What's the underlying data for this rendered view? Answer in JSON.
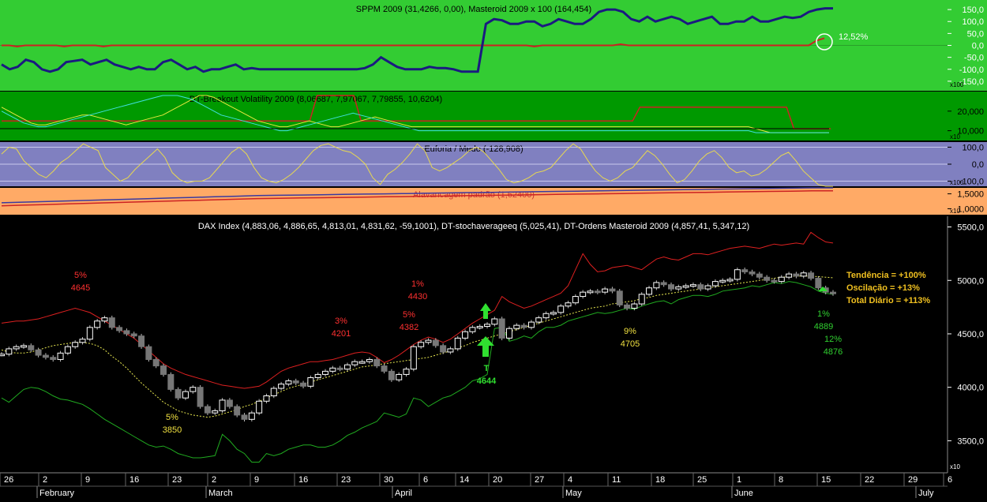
{
  "panels": {
    "sppm": {
      "title": "SPPM 2009 (31,4266, 0,00), Masteroid 2009 x 100 (164,454)",
      "ticks": [
        "150,0",
        "100,0",
        "50,0",
        "0,0",
        "-50,0",
        "-100,0",
        "-150,0"
      ],
      "scale": "x100",
      "annotation": "12,52%"
    },
    "breakout": {
      "title": "DT-Breakout Volatility 2009 (8,06687, 7,97067, 7,79855, 10,6204)",
      "ticks": [
        "20,000",
        "10,000"
      ],
      "scale": "x10"
    },
    "euforia": {
      "title": "Euforia / Medo (-128,908)",
      "ticks": [
        "100,0",
        "0,0",
        "-100,0"
      ],
      "scale": "x100"
    },
    "alavancagem": {
      "title": "Alavancagem padrão (1,62400)",
      "ticks": [
        "1,5000",
        "1,0000"
      ],
      "scale": "x10"
    },
    "dax": {
      "title": "DAX Index (4,883,06, 4,886,65, 4,813,01, 4,831,62, -59,1001), DT-stochaverageeq (5,025,41), DT-Ordens Masteroid 2009 (4,857,41, 5,347,12)",
      "ticks": [
        "5500,0",
        "5000,0",
        "4500,0",
        "4000,0",
        "3500,0"
      ],
      "scale": "x10",
      "legend": {
        "tendencia": "Tendência = +100%",
        "oscilacao": "Oscilação = +13%",
        "total": "Total Diário = +113%"
      },
      "signal_letter": "T",
      "signal_value": "4644",
      "annotations": [
        {
          "pct": "5%",
          "value": "4645",
          "color": "#ff3030"
        },
        {
          "pct": "5%",
          "value": "3850",
          "color": "#f0e040"
        },
        {
          "pct": "3%",
          "value": "4201",
          "color": "#ff3030"
        },
        {
          "pct": "5%",
          "value": "4382",
          "color": "#ff3030"
        },
        {
          "pct": "1%",
          "value": "4430",
          "color": "#ff3030"
        },
        {
          "pct": "9%",
          "value": "4705",
          "color": "#f0e040"
        },
        {
          "pct": "1%",
          "value": "4889",
          "color": "#30d030"
        },
        {
          "pct": "12%",
          "value": "4876",
          "color": "#30d030"
        }
      ]
    }
  },
  "x_axis": {
    "days": [
      "26",
      "2",
      "9",
      "16",
      "23",
      "2",
      "9",
      "16",
      "23",
      "30",
      "6",
      "14",
      "20",
      "27",
      "4",
      "11",
      "18",
      "25",
      "1",
      "8",
      "15",
      "22",
      "29",
      "6"
    ],
    "months": [
      "February",
      "March",
      "April",
      "May",
      "June",
      "July"
    ]
  },
  "chart_data": {
    "type": "candlestick",
    "title": "DAX Index (4,883,06, 4,886,65, 4,813,01, 4,831,62, -59,1001), DT-stochaverageeq (5,025,41), DT-Ordens Masteroid 2009 (4,857,41, 5,347,12)",
    "ylim": [
      3200,
      5600
    ],
    "yticks": [
      5500,
      5000,
      4500,
      4000,
      3500
    ],
    "close": [
      4310,
      4360,
      4380,
      4390,
      4350,
      4300,
      4280,
      4260,
      4320,
      4380,
      4420,
      4450,
      4560,
      4620,
      4650,
      4560,
      4530,
      4500,
      4480,
      4380,
      4260,
      4200,
      4120,
      3980,
      3900,
      3960,
      4000,
      3820,
      3760,
      3780,
      3880,
      3820,
      3740,
      3700,
      3760,
      3870,
      3920,
      3990,
      4030,
      4060,
      4040,
      4010,
      4090,
      4120,
      4150,
      4180,
      4170,
      4210,
      4240,
      4240,
      4260,
      4200,
      4150,
      4070,
      4120,
      4170,
      4380,
      4420,
      4440,
      4390,
      4330,
      4360,
      4460,
      4520,
      4560,
      4570,
      4590,
      4640,
      4460,
      4550,
      4580,
      4560,
      4610,
      4650,
      4690,
      4700,
      4760,
      4790,
      4850,
      4890,
      4900,
      4890,
      4920,
      4900,
      4770,
      4740,
      4780,
      4870,
      4930,
      4980,
      4960,
      4920,
      4940,
      4950,
      4960,
      4920,
      4950,
      4990,
      5000,
      5010,
      5100,
      5080,
      5060,
      5030,
      5000,
      4990,
      5030,
      5060,
      5040,
      5070,
      5020,
      4930,
      4890,
      4876
    ],
    "stoch_avg": [
      4350,
      4330,
      4320,
      4320,
      4330,
      4350,
      4370,
      4390,
      4400,
      4410,
      4420,
      4420,
      4410,
      4390,
      4350,
      4290,
      4240,
      4180,
      4110,
      4040,
      3980,
      3920,
      3860,
      3820,
      3780,
      3760,
      3740,
      3730,
      3720,
      3730,
      3750,
      3770,
      3790,
      3820,
      3840,
      3870,
      3900,
      3930,
      3960,
      3990,
      4010,
      4030,
      4050,
      4070,
      4090,
      4110,
      4130,
      4150,
      4170,
      4190,
      4200,
      4210,
      4220,
      4230,
      4240,
      4250,
      4260,
      4270,
      4280,
      4300,
      4320,
      4340,
      4370,
      4390,
      4420,
      4440,
      4460,
      4480,
      4500,
      4520,
      4540,
      4560,
      4580,
      4600,
      4620,
      4640,
      4660,
      4680,
      4700,
      4720,
      4740,
      4750,
      4760,
      4780,
      4790,
      4800,
      4810,
      4830,
      4840,
      4860,
      4870,
      4880,
      4890,
      4900,
      4910,
      4920,
      4930,
      4940,
      4950,
      4960,
      4970,
      4980,
      4990,
      5000,
      5010,
      5020,
      5030,
      5035,
      5040,
      5040,
      5040,
      5035,
      5030,
      5025
    ],
    "order_upper": [
      4600,
      4610,
      4620,
      4620,
      4630,
      4640,
      4660,
      4680,
      4700,
      4720,
      4740,
      4720,
      4700,
      4660,
      4620,
      4580,
      4540,
      4500,
      4460,
      4400,
      4340,
      4280,
      4220,
      4180,
      4150,
      4120,
      4100,
      4080,
      4060,
      4040,
      4020,
      4010,
      4000,
      3990,
      4000,
      4010,
      4050,
      4100,
      4150,
      4180,
      4200,
      4220,
      4240,
      4240,
      4250,
      4260,
      4280,
      4300,
      4320,
      4330,
      4320,
      4280,
      4230,
      4260,
      4300,
      4350,
      4400,
      4440,
      4470,
      4450,
      4420,
      4450,
      4500,
      4550,
      4600,
      4640,
      4680,
      4720,
      4850,
      4800,
      4770,
      4740,
      4760,
      4790,
      4820,
      4850,
      4880,
      4950,
      5100,
      5250,
      5150,
      5080,
      5090,
      5120,
      5130,
      5140,
      5120,
      5100,
      5150,
      5200,
      5220,
      5200,
      5190,
      5220,
      5250,
      5250,
      5240,
      5260,
      5280,
      5300,
      5310,
      5320,
      5310,
      5300,
      5320,
      5340,
      5330,
      5340,
      5350,
      5340,
      5450,
      5400,
      5360,
      5350
    ],
    "order_lower": [
      3900,
      3860,
      3920,
      3980,
      4000,
      3990,
      3960,
      3920,
      3890,
      3880,
      3860,
      3840,
      3800,
      3750,
      3700,
      3660,
      3620,
      3580,
      3540,
      3500,
      3460,
      3440,
      3450,
      3420,
      3380,
      3360,
      3340,
      3340,
      3350,
      3360,
      3560,
      3500,
      3420,
      3380,
      3300,
      3300,
      3380,
      3360,
      3380,
      3420,
      3440,
      3460,
      3460,
      3440,
      3440,
      3460,
      3500,
      3550,
      3580,
      3620,
      3650,
      3680,
      3760,
      3740,
      3720,
      3750,
      3900,
      3880,
      3820,
      3860,
      3900,
      3920,
      3960,
      4000,
      4060,
      4080,
      4120,
      4550,
      4560,
      4430,
      4450,
      4480,
      4460,
      4520,
      4560,
      4560,
      4580,
      4620,
      4640,
      4660,
      4680,
      4700,
      4690,
      4700,
      4720,
      4740,
      4730,
      4760,
      4780,
      4800,
      4810,
      4780,
      4820,
      4840,
      4860,
      4860,
      4850,
      4870,
      4900,
      4910,
      4920,
      4930,
      4950,
      4940,
      4960,
      4980,
      4970,
      4990,
      4980,
      4960,
      4940,
      4900,
      4880,
      4870
    ],
    "x_labels": [
      "26",
      "2",
      "9",
      "16",
      "23",
      "2",
      "9",
      "16",
      "23",
      "30",
      "6",
      "14",
      "20",
      "27",
      "4",
      "11",
      "18",
      "25",
      "1",
      "8",
      "15",
      "22",
      "29",
      "6"
    ],
    "month_labels": [
      "February",
      "March",
      "April",
      "May",
      "June",
      "July"
    ],
    "sppm_series": {
      "ylim": [
        -190,
        190
      ],
      "sppm": [
        -80,
        -100,
        -90,
        -60,
        -70,
        -100,
        -110,
        -100,
        -70,
        -65,
        -60,
        -80,
        -70,
        -60,
        -80,
        -90,
        -100,
        -90,
        -100,
        -100,
        -70,
        -60,
        -80,
        -100,
        -90,
        -110,
        -100,
        -100,
        -90,
        -80,
        -100,
        -95,
        -100,
        -100,
        -100,
        -100,
        -100,
        -100,
        -100,
        -100,
        -100,
        -100,
        -100,
        -100,
        -100,
        -95,
        -80,
        -50,
        -70,
        -90,
        -100,
        -100,
        -100,
        -90,
        -95,
        -95,
        -100,
        -110,
        -110,
        -110,
        90,
        110,
        105,
        90,
        90,
        100,
        100,
        80,
        90,
        110,
        100,
        90,
        90,
        110,
        140,
        150,
        150,
        140,
        110,
        100,
        120,
        100,
        110,
        120,
        110,
        90,
        100,
        110,
        120,
        90,
        90,
        100,
        100,
        120,
        100,
        100,
        110,
        120,
        115,
        120,
        140,
        150,
        155,
        155
      ],
      "masteroid": [
        0,
        0,
        -5,
        0,
        0,
        0,
        0,
        0,
        -5,
        0,
        0,
        0,
        0,
        -5,
        0,
        0,
        0,
        0,
        0,
        0,
        0,
        0,
        0,
        0,
        0,
        0,
        0,
        0,
        0,
        0,
        0,
        0,
        0,
        0,
        0,
        0,
        0,
        0,
        0,
        0,
        0,
        0,
        0,
        0,
        0,
        0,
        0,
        0,
        0,
        0,
        0,
        0,
        0,
        0,
        0,
        0,
        0,
        0,
        0,
        0,
        0,
        0,
        0,
        0,
        0,
        0,
        0,
        0,
        -5,
        0,
        0,
        0,
        0,
        0,
        0,
        0,
        0,
        0,
        0,
        5,
        0,
        0,
        0,
        0,
        0,
        0,
        0,
        0,
        0,
        0,
        0,
        0,
        0,
        0,
        0,
        0,
        0,
        0,
        0,
        0,
        0,
        0,
        0,
        0,
        20,
        30
      ]
    },
    "euforia_series": {
      "ylim": [
        -130,
        130
      ],
      "values": [
        60,
        100,
        90,
        20,
        -20,
        -60,
        -80,
        -40,
        10,
        40,
        80,
        120,
        100,
        80,
        -20,
        -60,
        -100,
        -80,
        -30,
        10,
        50,
        90,
        40,
        -50,
        -90,
        -110,
        -100,
        -100,
        -80,
        -30,
        20,
        70,
        100,
        60,
        -20,
        -80,
        -100,
        -110,
        -90,
        -60,
        -20,
        30,
        80,
        110,
        120,
        100,
        80,
        70,
        40,
        0,
        -80,
        -120,
        -60,
        -30,
        10,
        60,
        120,
        80,
        -20,
        -40,
        -20,
        10,
        40,
        80,
        100,
        70,
        20,
        -30,
        -90,
        -110,
        -100,
        -80,
        -50,
        -40,
        -20,
        30,
        80,
        120,
        90,
        20,
        -40,
        -80,
        -100,
        -80,
        -40,
        -20,
        30,
        80,
        50,
        0,
        -60,
        -110,
        -90,
        -40,
        20,
        60,
        80,
        40,
        -20,
        -50,
        -40,
        -70,
        -60,
        -30,
        10,
        50,
        70,
        20,
        -40,
        -80,
        -120,
        -130,
        -130
      ]
    },
    "breakout_series": {
      "ylim": [
        5000,
        30000
      ],
      "red": [
        15000,
        15000,
        15000,
        15000,
        15000,
        15000,
        15000,
        15000,
        15000,
        15000,
        15000,
        15000,
        15000,
        15000,
        15000,
        15000,
        15000,
        15000,
        15000,
        15000,
        15000,
        15000,
        15000,
        15000,
        15000,
        15000,
        15000,
        15000,
        15000,
        15000,
        15000,
        15000,
        15000,
        15000,
        15000,
        15000,
        15000,
        15000,
        15000,
        15000,
        15000,
        15000,
        15000,
        28000,
        28000,
        28000,
        28000,
        28000,
        28000,
        15000,
        15000,
        15000,
        15000,
        15000,
        15000,
        15000,
        15000,
        15000,
        15000,
        15000,
        15000,
        15000,
        15000,
        15000,
        15000,
        15000,
        15000,
        15000,
        15000,
        15000,
        15000,
        15000,
        15000,
        15000,
        15000,
        15000,
        15000,
        15000,
        15000,
        15000,
        15000,
        15000,
        15000,
        15000,
        15000,
        15000,
        15000,
        22000,
        22000,
        22000,
        22000,
        22000,
        22000,
        22000,
        22000,
        22000,
        22000,
        22000,
        22000,
        22000,
        22000,
        22000,
        22000,
        22000,
        22000,
        22000,
        22000,
        22000,
        11000,
        11000,
        11000,
        11000,
        11000,
        11000
      ],
      "cyan": [
        20000,
        18000,
        16000,
        14000,
        13000,
        12000,
        12000,
        13000,
        14000,
        15000,
        16000,
        17000,
        18000,
        19000,
        20000,
        21000,
        22000,
        23000,
        24000,
        25000,
        26000,
        27000,
        28000,
        28000,
        28000,
        27000,
        26000,
        24000,
        22000,
        20000,
        18000,
        17000,
        16000,
        15000,
        14000,
        13000,
        12000,
        11000,
        10000,
        10000,
        11000,
        12000,
        13000,
        14000,
        15000,
        16000,
        17000,
        18000,
        19000,
        18000,
        17000,
        16000,
        15000,
        14000,
        13000,
        12000,
        11000,
        10000,
        10000,
        10000,
        10000,
        10000,
        10000,
        10000,
        10000,
        10000,
        10000,
        10000,
        10000,
        10000,
        10000,
        10000,
        10000,
        10000,
        10000,
        10000,
        10000,
        10000,
        10000,
        10000,
        10000,
        10000,
        10000,
        10000,
        10000,
        10000,
        10000,
        10000,
        10000,
        10000,
        10000,
        10000,
        10000,
        10000,
        10000,
        10000,
        10000,
        10000,
        10000,
        10000,
        10000,
        10000,
        10000,
        9000,
        9000,
        9000,
        9000,
        9000,
        9000,
        9000,
        9000,
        9000,
        9000,
        9000
      ],
      "yellow": [
        22000,
        20000,
        18000,
        16000,
        14000,
        13000,
        13000,
        14000,
        15000,
        16000,
        17000,
        18000,
        18000,
        17000,
        16000,
        15000,
        14000,
        13000,
        14000,
        15000,
        16000,
        17000,
        18000,
        20000,
        22000,
        24000,
        26000,
        28000,
        28000,
        27000,
        25000,
        23000,
        21000,
        19000,
        17000,
        15000,
        14000,
        13000,
        12000,
        12000,
        13000,
        14000,
        15000,
        14000,
        13000,
        12000,
        12000,
        13000,
        14000,
        15000,
        16000,
        17000,
        16000,
        15000,
        14000,
        13000,
        12000,
        12000,
        12000,
        12000,
        12000,
        12000,
        12000,
        12000,
        12000,
        12000,
        12000,
        12000,
        12000,
        12000,
        12000,
        12000,
        12000,
        12000,
        12000,
        12000,
        12000,
        12000,
        12000,
        12000,
        12000,
        12000,
        12000,
        12000,
        12000,
        12000,
        12000,
        12000,
        12000,
        12000,
        12000,
        12000,
        12000,
        12000,
        12000,
        12000,
        12000,
        12000,
        12000,
        12000,
        12000,
        12000,
        12000,
        11000,
        10000,
        9000,
        9000,
        9000,
        9000,
        9000,
        9000,
        9000,
        9000,
        9000
      ]
    },
    "alavancagem_series": {
      "ylim": [
        8000,
        17000
      ],
      "red": [
        11000,
        11200,
        11400,
        11600,
        11800,
        12000,
        12200,
        12400,
        12600,
        12800,
        13000,
        13200,
        13400,
        13500,
        13600,
        13700,
        13800,
        13900,
        14000,
        14100,
        14200,
        14300,
        14400,
        14500,
        14600,
        14700,
        14800,
        14900,
        15000,
        15100,
        15200,
        15300,
        15400,
        15500,
        15600,
        15700,
        15800,
        15900,
        16000,
        16000
      ],
      "blue": [
        12000,
        12200,
        12400,
        12600,
        12800,
        13000,
        13200,
        13400,
        13600,
        13800,
        14000,
        14200,
        14400,
        14500,
        14600,
        14700,
        14800,
        14900,
        15000,
        15100,
        15200,
        15300,
        15400,
        15500,
        15600,
        15700,
        15800,
        15900,
        16000,
        16100,
        16200,
        16300,
        16400,
        16500,
        16600,
        16700,
        16800,
        16900,
        17000,
        17000
      ]
    }
  }
}
